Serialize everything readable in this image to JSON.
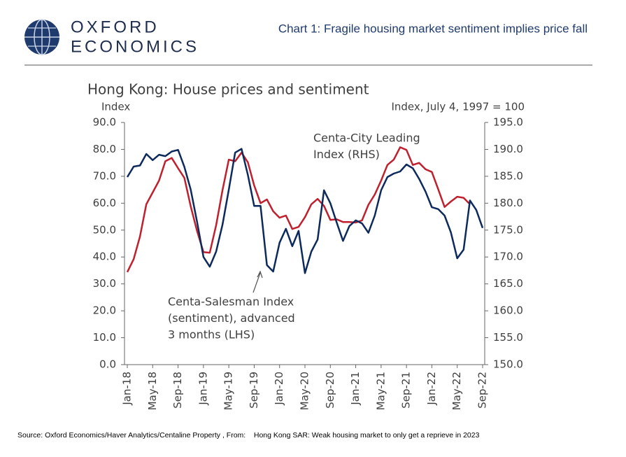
{
  "header": {
    "logo_top": "OXFORD",
    "logo_bottom": "ECONOMICS",
    "title": "Chart 1: Fragile housing market sentiment implies price fall"
  },
  "chart_data": {
    "type": "line",
    "title": "Hong Kong: House prices and sentiment",
    "ylabel": "Index",
    "y2label": "Index, July 4, 1997 = 100",
    "categories": [
      "Jan-18",
      null,
      null,
      null,
      "May-18",
      null,
      null,
      null,
      "Sep-18",
      null,
      null,
      null,
      "Jan-19",
      null,
      null,
      null,
      "May-19",
      null,
      null,
      null,
      "Sep-19",
      null,
      null,
      null,
      "Jan-20",
      null,
      null,
      null,
      "May-20",
      null,
      null,
      null,
      "Sep-20",
      null,
      null,
      null,
      "Jan-21",
      null,
      null,
      null,
      "May-21",
      null,
      null,
      null,
      "Sep-21",
      null,
      null,
      null,
      "Jan-22",
      null,
      null,
      null,
      "May-22",
      null,
      null,
      null,
      "Sep-22"
    ],
    "series": [
      {
        "name": "Centa-Salesman Index",
        "color": "#0d2a5c",
        "axis": "y",
        "values": [
          69.7,
          73.6,
          74,
          78.3,
          76,
          78,
          77.5,
          79.2,
          79.8,
          73.5,
          65,
          53,
          40,
          36.4,
          42,
          52,
          65,
          78.8,
          80.2,
          70.5,
          59,
          59,
          37,
          34.6,
          45.3,
          50.5,
          44,
          49.7,
          34,
          42,
          46.5,
          64.8,
          60,
          52.8,
          46,
          51.5,
          53.6,
          52.5,
          49,
          55.4,
          64.8,
          69.7,
          71,
          71.8,
          74.4,
          73,
          69,
          64.3,
          58.5,
          57.8,
          55.4,
          49.2,
          39.5,
          42.7,
          61,
          57.5,
          50.8
        ]
      },
      {
        "name": "Centa-City Leading Index",
        "color": "#c0202e",
        "axis": "y2",
        "values": [
          167.2,
          169.6,
          173.8,
          179.8,
          182,
          184.2,
          187.8,
          188.4,
          186.5,
          184.7,
          179.4,
          174.8,
          170.9,
          170.8,
          175.9,
          182.4,
          188.1,
          187.8,
          189.4,
          187.6,
          183.3,
          180,
          180.7,
          178.5,
          177.3,
          177.7,
          175.2,
          175.6,
          177.4,
          179.8,
          180.8,
          179.5,
          176.9,
          177,
          176.5,
          176.5,
          176.4,
          176.8,
          179.7,
          181.6,
          184.2,
          187.1,
          188.1,
          190.4,
          189.9,
          187.1,
          187.5,
          186.3,
          185.8,
          182.6,
          179.3,
          180.3,
          181.2,
          181,
          179.8,
          null,
          null
        ]
      }
    ],
    "ylim": [
      0,
      90
    ],
    "yticks": [
      {
        "value": 0,
        "label": "0.0"
      },
      {
        "value": 10,
        "label": "10.0"
      },
      {
        "value": 20,
        "label": "20.0"
      },
      {
        "value": 30,
        "label": "30.0"
      },
      {
        "value": 40,
        "label": "40.0"
      },
      {
        "value": 50,
        "label": "50.0"
      },
      {
        "value": 60,
        "label": "60.0"
      },
      {
        "value": 70,
        "label": "70.0"
      },
      {
        "value": 80,
        "label": "80.0"
      },
      {
        "value": 90,
        "label": "90.0"
      }
    ],
    "y2lim": [
      150,
      195
    ],
    "y2ticks": [
      {
        "value": 150,
        "label": "150.0"
      },
      {
        "value": 155,
        "label": "155.0"
      },
      {
        "value": 160,
        "label": "160.0"
      },
      {
        "value": 165,
        "label": "165.0"
      },
      {
        "value": 170,
        "label": "170.0"
      },
      {
        "value": 175,
        "label": "175.0"
      },
      {
        "value": 180,
        "label": "180.0"
      },
      {
        "value": 185,
        "label": "185.0"
      },
      {
        "value": 190,
        "label": "190.0"
      },
      {
        "value": 195,
        "label": "195.0"
      }
    ],
    "annotations": [
      [
        "Centa-City Leading",
        "Index (RHS)"
      ],
      [
        "Centa-Salesman Index",
        "(sentiment), advanced",
        "3 months (LHS)"
      ]
    ]
  },
  "footer": {
    "source": "Source: Oxford Economics/Haver Analytics/Centaline Property , From:    Hong Kong SAR: Weak housing market to only get a reprieve in 2023"
  }
}
